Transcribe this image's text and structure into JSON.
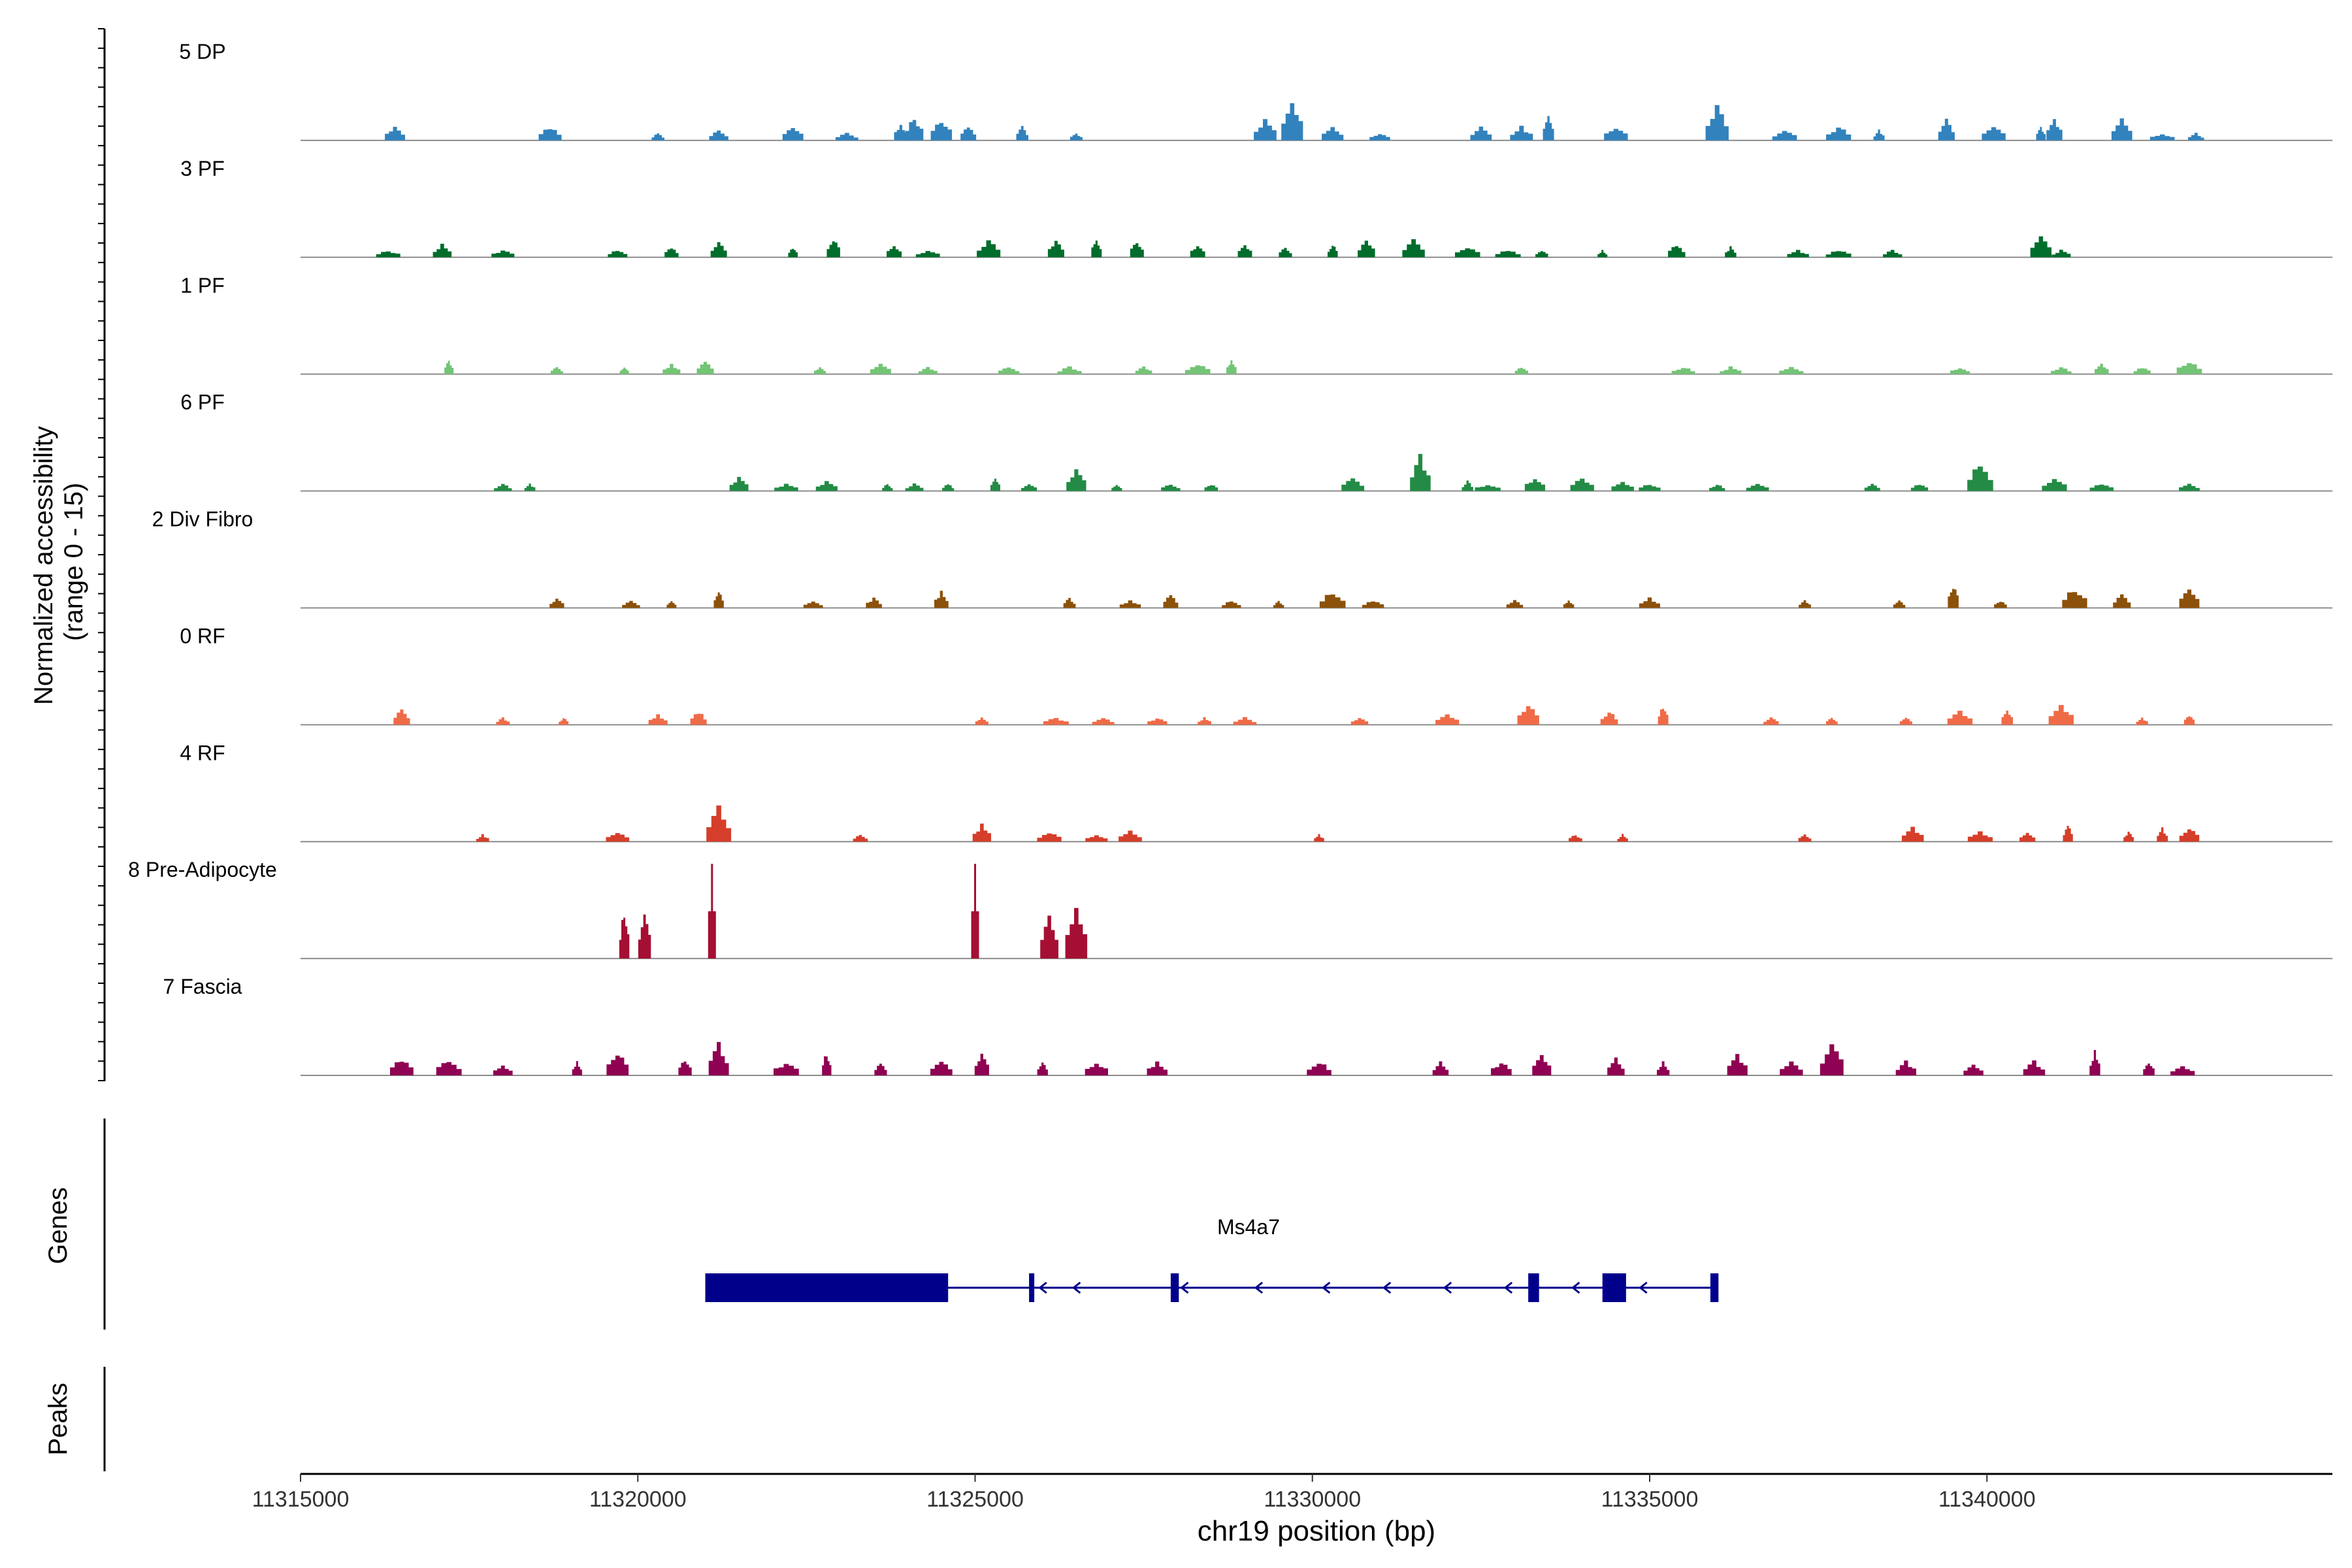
{
  "chart_data": {
    "type": "area",
    "title": "",
    "ylabel": "Normalized accessibility\n(range 0 - 15)",
    "xlabel": "chr19 position (bp)",
    "xlim": [
      11315000,
      11344500
    ],
    "ylim": [
      0,
      15
    ],
    "xticks": [
      11315000,
      11320000,
      11325000,
      11330000,
      11335000,
      11340000
    ],
    "xtick_labels": [
      "11315000",
      "11320000",
      "11325000",
      "11330000",
      "11335000",
      "11340000"
    ],
    "tracks": [
      {
        "name": "5 DP",
        "color": "#3282BD",
        "peaks": [
          [
            11316400,
            2.3
          ],
          [
            11318700,
            2.3
          ],
          [
            11320300,
            1.2
          ],
          [
            11321200,
            1.7
          ],
          [
            11322300,
            2.3
          ],
          [
            11323100,
            1.2
          ],
          [
            11323900,
            2.8
          ],
          [
            11324100,
            4.0
          ],
          [
            11324500,
            3.5
          ],
          [
            11324900,
            2.3
          ],
          [
            11325700,
            2.3
          ],
          [
            11326500,
            1.2
          ],
          [
            11329300,
            3.5
          ],
          [
            11329700,
            6.3
          ],
          [
            11330300,
            2.3
          ],
          [
            11331000,
            1.2
          ],
          [
            11332500,
            2.3
          ],
          [
            11333100,
            2.3
          ],
          [
            11333500,
            4.5
          ],
          [
            11334500,
            2.3
          ],
          [
            11336000,
            5.8
          ],
          [
            11337000,
            1.7
          ],
          [
            11337800,
            2.3
          ],
          [
            11338400,
            1.7
          ],
          [
            11339400,
            3.5
          ],
          [
            11340100,
            2.3
          ],
          [
            11340800,
            2.3
          ],
          [
            11341000,
            3.5
          ],
          [
            11342000,
            3.5
          ],
          [
            11342600,
            1.2
          ],
          [
            11343100,
            1.2
          ]
        ]
      },
      {
        "name": "3 PF",
        "color": "#006D2C",
        "peaks": [
          [
            11316300,
            1.2
          ],
          [
            11317100,
            2.2
          ],
          [
            11318000,
            1.2
          ],
          [
            11319700,
            1.2
          ],
          [
            11320500,
            1.7
          ],
          [
            11321200,
            2.8
          ],
          [
            11322300,
            1.7
          ],
          [
            11322900,
            3.3
          ],
          [
            11323800,
            2.2
          ],
          [
            11324300,
            1.2
          ],
          [
            11325200,
            2.8
          ],
          [
            11326200,
            2.8
          ],
          [
            11326800,
            3.3
          ],
          [
            11327400,
            2.8
          ],
          [
            11328300,
            2.2
          ],
          [
            11329000,
            2.2
          ],
          [
            11329600,
            1.7
          ],
          [
            11330300,
            2.2
          ],
          [
            11330800,
            2.8
          ],
          [
            11331500,
            2.8
          ],
          [
            11332300,
            1.7
          ],
          [
            11332900,
            1.2
          ],
          [
            11333400,
            1.2
          ],
          [
            11334300,
            1.2
          ],
          [
            11335400,
            2.2
          ],
          [
            11336200,
            1.7
          ],
          [
            11337200,
            1.2
          ],
          [
            11337800,
            1.2
          ],
          [
            11338600,
            1.2
          ],
          [
            11340800,
            3.3
          ],
          [
            11341100,
            1.2
          ]
        ]
      },
      {
        "name": "1 PF",
        "color": "#74C476",
        "peaks": [
          [
            11317200,
            2.3
          ],
          [
            11318800,
            1.2
          ],
          [
            11319800,
            1.2
          ],
          [
            11320500,
            1.7
          ],
          [
            11321000,
            2.3
          ],
          [
            11322700,
            1.2
          ],
          [
            11323600,
            1.7
          ],
          [
            11324300,
            1.2
          ],
          [
            11325500,
            1.2
          ],
          [
            11326400,
            1.2
          ],
          [
            11327500,
            1.2
          ],
          [
            11328300,
            1.7
          ],
          [
            11328800,
            2.3
          ],
          [
            11333100,
            1.2
          ],
          [
            11335500,
            1.2
          ],
          [
            11336200,
            1.2
          ],
          [
            11337100,
            1.2
          ],
          [
            11339600,
            1.2
          ],
          [
            11341100,
            1.2
          ],
          [
            11341700,
            1.7
          ],
          [
            11342300,
            1.2
          ],
          [
            11343000,
            2.3
          ]
        ]
      },
      {
        "name": "6 PF",
        "color": "#238B45",
        "peaks": [
          [
            11318000,
            1.2
          ],
          [
            11318400,
            1.2
          ],
          [
            11321500,
            2.3
          ],
          [
            11322200,
            1.2
          ],
          [
            11322800,
            1.7
          ],
          [
            11323700,
            1.2
          ],
          [
            11324100,
            1.2
          ],
          [
            11324600,
            1.2
          ],
          [
            11325300,
            2.3
          ],
          [
            11325800,
            1.2
          ],
          [
            11326500,
            3.5
          ],
          [
            11327100,
            1.2
          ],
          [
            11327900,
            1.2
          ],
          [
            11328500,
            1.2
          ],
          [
            11330600,
            2.3
          ],
          [
            11331600,
            5.8
          ],
          [
            11332300,
            1.7
          ],
          [
            11332600,
            1.2
          ],
          [
            11333300,
            2.3
          ],
          [
            11334000,
            2.3
          ],
          [
            11334600,
            1.7
          ],
          [
            11335000,
            1.2
          ],
          [
            11336000,
            1.2
          ],
          [
            11336600,
            1.2
          ],
          [
            11338300,
            1.2
          ],
          [
            11339000,
            1.2
          ],
          [
            11339900,
            4.5
          ],
          [
            11341000,
            2.3
          ],
          [
            11341700,
            1.2
          ],
          [
            11343000,
            1.2
          ]
        ]
      },
      {
        "name": "2 Div Fibro",
        "color": "#8C510A",
        "peaks": [
          [
            11318800,
            1.7
          ],
          [
            11319900,
            1.2
          ],
          [
            11320500,
            1.2
          ],
          [
            11321200,
            2.8
          ],
          [
            11322600,
            1.2
          ],
          [
            11323500,
            1.7
          ],
          [
            11324500,
            2.8
          ],
          [
            11326400,
            1.7
          ],
          [
            11327300,
            1.2
          ],
          [
            11327900,
            2.3
          ],
          [
            11328800,
            1.2
          ],
          [
            11329500,
            1.2
          ],
          [
            11330300,
            2.8
          ],
          [
            11330900,
            1.2
          ],
          [
            11333000,
            1.2
          ],
          [
            11333800,
            1.2
          ],
          [
            11335000,
            1.7
          ],
          [
            11337300,
            1.2
          ],
          [
            11338700,
            1.2
          ],
          [
            11339500,
            4.0
          ],
          [
            11340200,
            1.2
          ],
          [
            11341300,
            3.3
          ],
          [
            11342000,
            2.3
          ],
          [
            11343000,
            3.5
          ]
        ]
      },
      {
        "name": "0 RF",
        "color": "#EF6B48",
        "peaks": [
          [
            11316500,
            2.8
          ],
          [
            11318000,
            1.2
          ],
          [
            11318900,
            1.2
          ],
          [
            11320300,
            1.7
          ],
          [
            11320900,
            2.3
          ],
          [
            11325100,
            1.2
          ],
          [
            11326200,
            1.2
          ],
          [
            11326900,
            1.2
          ],
          [
            11327700,
            1.2
          ],
          [
            11328400,
            1.2
          ],
          [
            11329000,
            1.2
          ],
          [
            11330700,
            1.2
          ],
          [
            11332000,
            1.7
          ],
          [
            11333200,
            3.3
          ],
          [
            11334400,
            2.3
          ],
          [
            11335200,
            3.3
          ],
          [
            11336800,
            1.2
          ],
          [
            11337700,
            1.2
          ],
          [
            11338800,
            1.2
          ],
          [
            11339600,
            2.3
          ],
          [
            11340300,
            2.8
          ],
          [
            11341100,
            3.3
          ],
          [
            11342300,
            1.2
          ],
          [
            11343000,
            1.7
          ]
        ]
      },
      {
        "name": "4 RF",
        "color": "#D53E2A",
        "peaks": [
          [
            11317700,
            1.2
          ],
          [
            11319700,
            1.7
          ],
          [
            11321200,
            5.8
          ],
          [
            11323300,
            1.2
          ],
          [
            11325100,
            2.8
          ],
          [
            11326100,
            1.7
          ],
          [
            11326800,
            1.2
          ],
          [
            11327300,
            1.7
          ],
          [
            11330100,
            1.2
          ],
          [
            11333900,
            1.2
          ],
          [
            11334600,
            1.2
          ],
          [
            11337300,
            1.2
          ],
          [
            11338900,
            2.3
          ],
          [
            11339900,
            1.7
          ],
          [
            11340600,
            1.7
          ],
          [
            11341200,
            2.8
          ],
          [
            11342100,
            1.7
          ],
          [
            11342600,
            2.3
          ],
          [
            11343000,
            2.3
          ]
        ]
      },
      {
        "name": "8 Pre-Adipocyte",
        "color": "#A50F33",
        "peaks": [
          [
            11319800,
            8.1
          ],
          [
            11320100,
            8.1
          ],
          [
            11321100,
            16.0
          ],
          [
            11325000,
            16.0
          ],
          [
            11326100,
            8.1
          ],
          [
            11326500,
            8.1
          ]
        ]
      },
      {
        "name": "7 Fascia",
        "color": "#8F0152",
        "peaks": [
          [
            11316500,
            2.8
          ],
          [
            11317200,
            2.8
          ],
          [
            11318000,
            1.7
          ],
          [
            11319100,
            2.3
          ],
          [
            11319700,
            4.0
          ],
          [
            11320700,
            2.8
          ],
          [
            11321200,
            5.2
          ],
          [
            11322200,
            2.3
          ],
          [
            11322800,
            4.0
          ],
          [
            11323600,
            2.3
          ],
          [
            11324500,
            2.3
          ],
          [
            11325100,
            4.0
          ],
          [
            11326000,
            2.3
          ],
          [
            11326800,
            2.3
          ],
          [
            11327700,
            2.3
          ],
          [
            11330100,
            2.3
          ],
          [
            11331900,
            2.3
          ],
          [
            11332800,
            2.3
          ],
          [
            11333400,
            3.5
          ],
          [
            11334500,
            2.8
          ],
          [
            11335200,
            2.3
          ],
          [
            11336300,
            3.5
          ],
          [
            11337100,
            2.3
          ],
          [
            11337700,
            5.2
          ],
          [
            11338800,
            2.3
          ],
          [
            11339800,
            1.7
          ],
          [
            11340700,
            2.3
          ],
          [
            11341600,
            4.0
          ],
          [
            11342400,
            2.3
          ],
          [
            11342900,
            1.7
          ]
        ]
      }
    ],
    "genes_panel": {
      "label": "Genes",
      "gene_name": "Ms4a7",
      "strand": "-",
      "start": 11321000,
      "end": 11336000,
      "exons": [
        [
          11321000,
          11324600
        ],
        [
          11325800,
          11325850
        ],
        [
          11327900,
          11328020
        ],
        [
          11333200,
          11333360
        ],
        [
          11334300,
          11334650
        ],
        [
          11335900,
          11336020
        ]
      ],
      "color": "#00008B"
    },
    "peaks_panel": {
      "label": "Peaks"
    }
  }
}
